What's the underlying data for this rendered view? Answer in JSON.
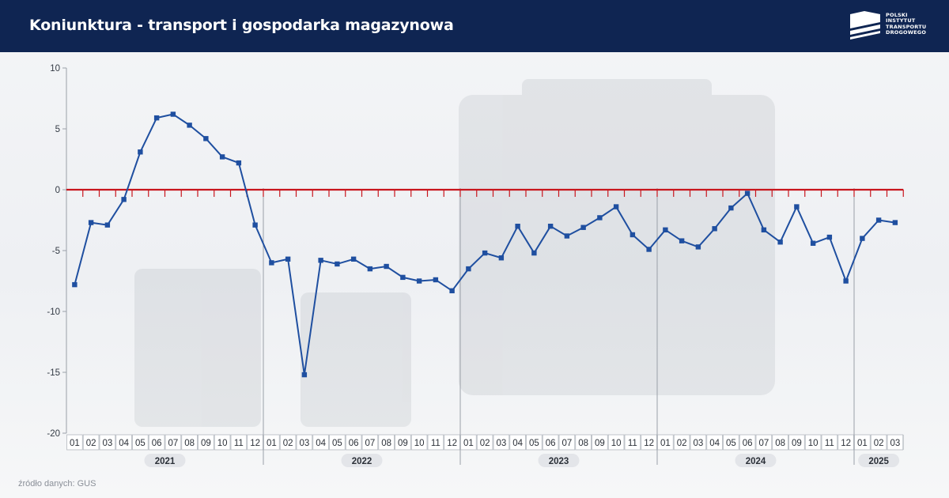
{
  "header": {
    "title": "Koniunktura - transport i gospodarka magazynowa",
    "logo_lines": [
      "POLSKI",
      "INSTYTUT",
      "TRANSPORTU",
      "DROGOWEGO"
    ]
  },
  "source": "źródło danych: GUS",
  "colors": {
    "header_bg": "#0f2552",
    "line": "#1f4fa0",
    "zero_line": "#c8161d"
  },
  "chart_data": {
    "type": "line",
    "title": "",
    "xlabel": "",
    "ylabel": "",
    "ylim": [
      -20,
      10
    ],
    "yticks": [
      10,
      5,
      0,
      -5,
      -10,
      -15,
      -20
    ],
    "grid": false,
    "years": [
      {
        "label": "2021",
        "months": [
          "01",
          "02",
          "03",
          "04",
          "05",
          "06",
          "07",
          "08",
          "09",
          "10",
          "11",
          "12"
        ]
      },
      {
        "label": "2022",
        "months": [
          "01",
          "02",
          "03",
          "04",
          "05",
          "06",
          "07",
          "08",
          "09",
          "10",
          "11",
          "12"
        ]
      },
      {
        "label": "2023",
        "months": [
          "01",
          "02",
          "03",
          "04",
          "05",
          "06",
          "07",
          "08",
          "09",
          "10",
          "11",
          "12"
        ]
      },
      {
        "label": "2024",
        "months": [
          "01",
          "02",
          "03",
          "04",
          "05",
          "06",
          "07",
          "08",
          "09",
          "10",
          "11",
          "12"
        ]
      },
      {
        "label": "2025",
        "months": [
          "01",
          "02",
          "03"
        ]
      }
    ],
    "series": [
      {
        "values": [
          -7.8,
          -2.7,
          -2.9,
          -0.8,
          3.1,
          5.9,
          6.2,
          5.3,
          4.2,
          2.7,
          2.2,
          -2.9,
          -6.0,
          -5.7,
          -15.2,
          -5.8,
          -6.1,
          -5.7,
          -6.5,
          -6.3,
          -7.2,
          -7.5,
          -7.4,
          -8.3,
          -6.5,
          -5.2,
          -5.6,
          -3.0,
          -5.2,
          -3.0,
          -3.8,
          -3.1,
          -2.3,
          -1.4,
          -3.7,
          -4.9,
          -3.3,
          -4.2,
          -4.7,
          -3.2,
          -1.5,
          -0.3,
          -3.3,
          -4.3,
          -1.4,
          -4.4,
          -3.9,
          -7.5,
          -4.0,
          -2.5,
          -2.7
        ]
      }
    ]
  }
}
